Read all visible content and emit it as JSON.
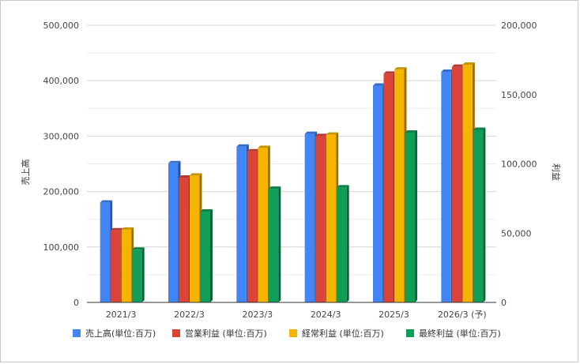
{
  "chart_data": {
    "type": "bar",
    "categories": [
      "2021/3",
      "2022/3",
      "2023/3",
      "2024/3",
      "2025/3",
      "2026/3 (予)"
    ],
    "ylabel_left": "売上高",
    "ylabel_right": "利益",
    "ylim_left": [
      0,
      500000
    ],
    "ylim_right": [
      0,
      200000
    ],
    "yticks_left": [
      "0",
      "100,000",
      "200,000",
      "300,000",
      "400,000",
      "500,000"
    ],
    "yticks_right": [
      "0",
      "50,000",
      "100,000",
      "150,000",
      "200,000"
    ],
    "grid": true,
    "legend_position": "bottom",
    "series": [
      {
        "name": "売上高(単位:百万)",
        "axis": "left",
        "color": "#4285f4",
        "values": [
          180000,
          251000,
          281000,
          304000,
          391000,
          416000
        ]
      },
      {
        "name": "営業利益 (単位:百万)",
        "axis": "right",
        "color": "#db4437",
        "values": [
          52000,
          90000,
          109000,
          120000,
          165000,
          170000
        ]
      },
      {
        "name": "経常利益 (単位:百万)",
        "axis": "right",
        "color": "#f4b400",
        "values": [
          52500,
          91500,
          111500,
          121000,
          168000,
          171500
        ]
      },
      {
        "name": "最終利益 (単位:百万)",
        "axis": "right",
        "color": "#0f9d58",
        "values": [
          38000,
          65500,
          82000,
          83000,
          122500,
          124500
        ]
      }
    ]
  }
}
